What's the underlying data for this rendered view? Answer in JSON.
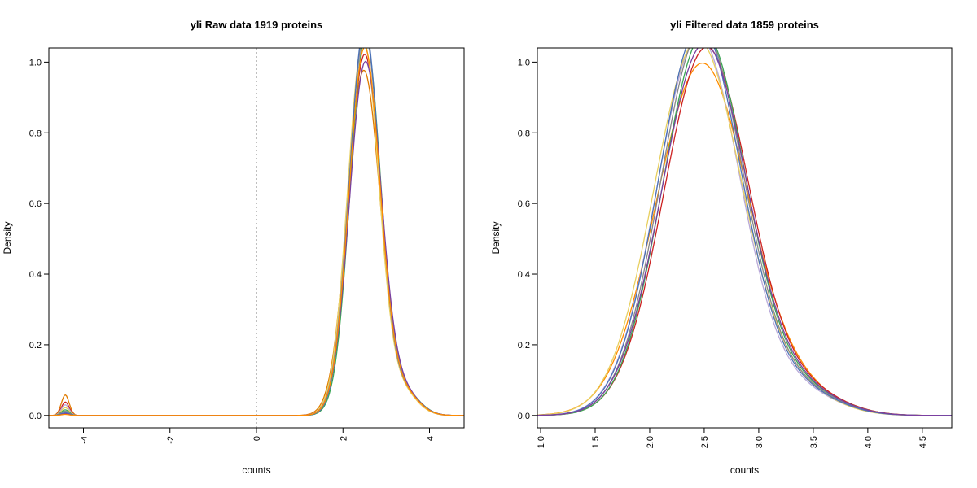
{
  "chart_data": [
    {
      "type": "line",
      "title": "yli  Raw data  1919  proteins",
      "xlabel": "counts",
      "ylabel": "Density",
      "xlim": [
        -4.8,
        4.8
      ],
      "ylim": [
        -0.035,
        1.04
      ],
      "xticks": [
        -4,
        -2,
        0,
        2,
        4
      ],
      "xtick_labels": [
        "-4",
        "-2",
        "0",
        "2",
        "4"
      ],
      "yticks": [
        0.0,
        0.2,
        0.4,
        0.6,
        0.8,
        1.0
      ],
      "ytick_labels": [
        "0.0",
        "0.2",
        "0.4",
        "0.6",
        "0.8",
        "1.0"
      ],
      "x_tick_label_rotation": "vertical",
      "grid": false,
      "legend": "none",
      "reference_line": {
        "x": 0,
        "style": "dotted",
        "color": "#aaaaaa"
      },
      "series": [
        {
          "color": "#e07b00",
          "low_peak": 0.058,
          "main_peak": 0.975,
          "center": 2.48,
          "sd": 0.38
        },
        {
          "color": "#cc2222",
          "low_peak": 0.038,
          "main_peak": 1.02,
          "center": 2.5,
          "sd": 0.37
        },
        {
          "color": "#b8a8d8",
          "low_peak": 0.03,
          "main_peak": 1.05,
          "center": 2.48,
          "sd": 0.36
        },
        {
          "color": "#e8d060",
          "low_peak": 0.022,
          "main_peak": 1.06,
          "center": 2.47,
          "sd": 0.36
        },
        {
          "color": "#3aa655",
          "low_peak": 0.016,
          "main_peak": 1.07,
          "center": 2.52,
          "sd": 0.35
        },
        {
          "color": "#888888",
          "low_peak": 0.012,
          "main_peak": 1.08,
          "center": 2.5,
          "sd": 0.36
        },
        {
          "color": "#4b72b8",
          "low_peak": 0.008,
          "main_peak": 1.1,
          "center": 2.5,
          "sd": 0.35
        },
        {
          "color": "#7b3fa0",
          "low_peak": 0.005,
          "main_peak": 1.0,
          "center": 2.52,
          "sd": 0.37
        },
        {
          "color": "#ff8c00",
          "low_peak": 0.003,
          "main_peak": 1.04,
          "center": 2.5,
          "sd": 0.36
        }
      ]
    },
    {
      "type": "line",
      "title": "yli  Filtered data 1859  proteins",
      "xlabel": "counts",
      "ylabel": "Density",
      "xlim": [
        0.97,
        4.77
      ],
      "ylim": [
        -0.035,
        1.04
      ],
      "xticks": [
        1.0,
        1.5,
        2.0,
        2.5,
        3.0,
        3.5,
        4.0,
        4.5
      ],
      "xtick_labels": [
        "1.0",
        "1.5",
        "2.0",
        "2.5",
        "3.0",
        "3.5",
        "4.0",
        "4.5"
      ],
      "yticks": [
        0.0,
        0.2,
        0.4,
        0.6,
        0.8,
        1.0
      ],
      "ytick_labels": [
        "0.0",
        "0.2",
        "0.4",
        "0.6",
        "0.8",
        "1.0"
      ],
      "x_tick_label_rotation": "vertical",
      "grid": false,
      "legend": "none",
      "series": [
        {
          "color": "#ff8c00",
          "main_peak": 0.995,
          "center": 2.48,
          "sd": 0.42
        },
        {
          "color": "#cc2222",
          "main_peak": 1.04,
          "center": 2.52,
          "sd": 0.39
        },
        {
          "color": "#b8a8d8",
          "main_peak": 1.07,
          "center": 2.45,
          "sd": 0.38
        },
        {
          "color": "#e8d060",
          "main_peak": 1.06,
          "center": 2.44,
          "sd": 0.4
        },
        {
          "color": "#3aa655",
          "main_peak": 1.08,
          "center": 2.5,
          "sd": 0.38
        },
        {
          "color": "#888888",
          "main_peak": 1.09,
          "center": 2.48,
          "sd": 0.38
        },
        {
          "color": "#4b72b8",
          "main_peak": 1.1,
          "center": 2.46,
          "sd": 0.38
        },
        {
          "color": "#7b3fa0",
          "main_peak": 1.05,
          "center": 2.5,
          "sd": 0.39
        }
      ]
    }
  ]
}
